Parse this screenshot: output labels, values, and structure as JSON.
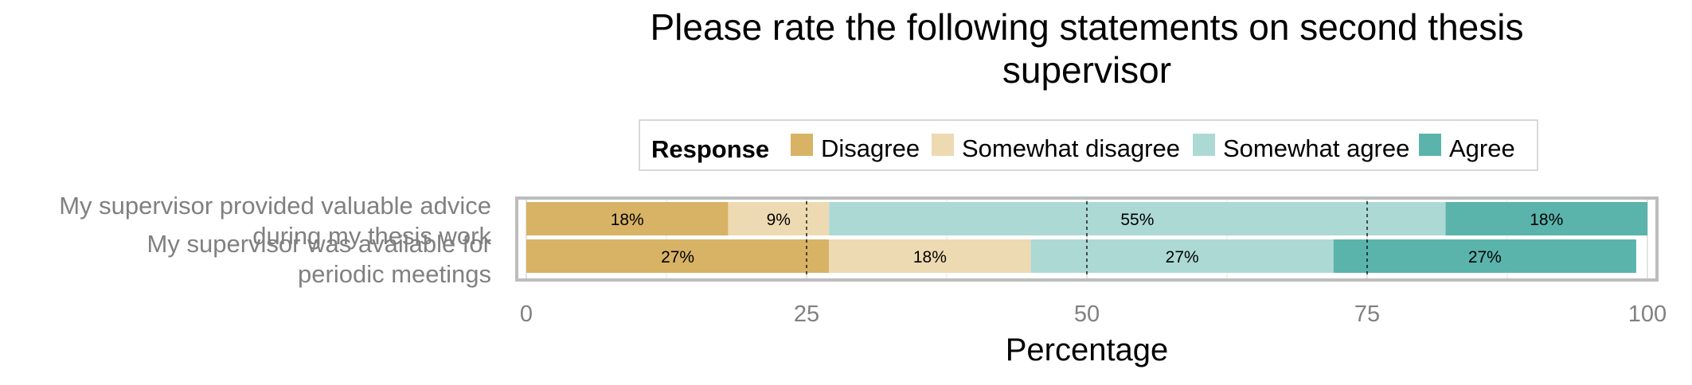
{
  "chart_data": {
    "type": "bar",
    "orientation": "horizontal",
    "stacked": true,
    "title": "Please rate the following statements on second thesis supervisor",
    "xlabel": "Percentage",
    "ylabel": "",
    "xlim": [
      0,
      100
    ],
    "x_ticks": [
      "0",
      "25",
      "50",
      "75",
      "100"
    ],
    "categories": [
      "My supervisor provided valuable advice during my thesis work",
      "My supervisor was available for periodic meetings"
    ],
    "legend": {
      "title": "Response",
      "position": "top"
    },
    "series": [
      {
        "name": "Disagree",
        "color": "#D8B365",
        "values": [
          18,
          27
        ],
        "labels": [
          "18%",
          "27%"
        ]
      },
      {
        "name": "Somewhat disagree",
        "color": "#EEDAB2",
        "values": [
          9,
          18
        ],
        "labels": [
          "9%",
          "18%"
        ]
      },
      {
        "name": "Somewhat agree",
        "color": "#ADD9D5",
        "values": [
          55,
          27
        ],
        "labels": [
          "55%",
          "27%"
        ]
      },
      {
        "name": "Agree",
        "color": "#5AB4AC",
        "values": [
          18,
          27
        ],
        "labels": [
          "18%",
          "27%"
        ]
      }
    ],
    "reference_lines": [
      25,
      50,
      75
    ],
    "grid": true
  }
}
